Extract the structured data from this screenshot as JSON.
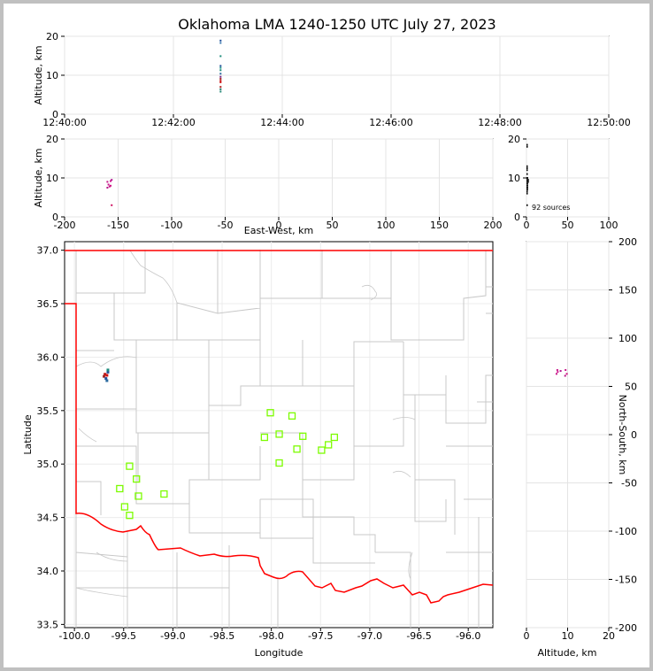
{
  "chart_data": [
    {
      "type": "scatter",
      "panel": "time-height",
      "title": "Oklahoma LMA 1240-1250 UTC July 27, 2023",
      "xlabel": "",
      "ylabel": "Altitude, km",
      "xlim": [
        "12:40:00",
        "12:50:00"
      ],
      "ylim": [
        0,
        20
      ],
      "x_ticks": [
        "12:40:00",
        "12:42:00",
        "12:44:00",
        "12:46:00",
        "12:48:00",
        "12:50:00"
      ],
      "y_ticks": [
        0,
        10,
        20
      ],
      "grid": true,
      "points": [
        {
          "t": "12:42:52",
          "alt": 18.9,
          "color": "#1f4e9a"
        },
        {
          "t": "12:42:52",
          "alt": 18.3,
          "color": "#3a7ab0"
        },
        {
          "t": "12:42:52",
          "alt": 14.9,
          "color": "#1a8a7a"
        },
        {
          "t": "12:42:52",
          "alt": 12.4,
          "color": "#1f4e9a"
        },
        {
          "t": "12:42:52",
          "alt": 11.9,
          "color": "#2a9a8a"
        },
        {
          "t": "12:42:52",
          "alt": 11.3,
          "color": "#1a8a7a"
        },
        {
          "t": "12:42:52",
          "alt": 10.4,
          "color": "#2a6aa0"
        },
        {
          "t": "12:42:52",
          "alt": 9.6,
          "color": "#7a2a8a"
        },
        {
          "t": "12:42:52",
          "alt": 9.1,
          "color": "#a02a2a"
        },
        {
          "t": "12:42:52",
          "alt": 8.6,
          "color": "#c01818"
        },
        {
          "t": "12:42:52",
          "alt": 8.2,
          "color": "#d01010"
        },
        {
          "t": "12:42:52",
          "alt": 7.0,
          "color": "#b01818"
        },
        {
          "t": "12:42:52",
          "alt": 6.4,
          "color": "#1a7a6a"
        },
        {
          "t": "12:42:52",
          "alt": 5.8,
          "color": "#2a8a7a"
        }
      ]
    },
    {
      "type": "scatter",
      "panel": "east-west-height",
      "xlabel": "East-West, km",
      "ylabel": "Altitude, km",
      "xlim": [
        -200,
        200
      ],
      "ylim": [
        0,
        20
      ],
      "x_ticks": [
        -200,
        -150,
        -100,
        -50,
        0,
        50,
        100,
        150,
        200
      ],
      "y_ticks": [
        0,
        10,
        20
      ],
      "grid": true,
      "points": [
        {
          "x": -160,
          "alt": 9.0,
          "color": "#c8188a"
        },
        {
          "x": -157,
          "alt": 9.2,
          "color": "#d0148a"
        },
        {
          "x": -156,
          "alt": 9.5,
          "color": "#b01090"
        },
        {
          "x": -159,
          "alt": 8.3,
          "color": "#c8188a"
        },
        {
          "x": -157,
          "alt": 8.0,
          "color": "#d01080"
        },
        {
          "x": -160,
          "alt": 7.5,
          "color": "#b81488"
        },
        {
          "x": -158,
          "alt": 7.8,
          "color": "#c8188a"
        },
        {
          "x": -156,
          "alt": 3.0,
          "color": "#d01060"
        }
      ]
    },
    {
      "type": "histogram",
      "panel": "altitude-histogram",
      "xlim": [
        0,
        100
      ],
      "ylim": [
        0,
        20
      ],
      "x_ticks": [
        0,
        50,
        100
      ],
      "y_ticks": [
        0,
        10,
        20
      ],
      "grid": true,
      "annotation": "92 sources",
      "bins": [
        {
          "alt": 18.5,
          "count": 1
        },
        {
          "alt": 18.0,
          "count": 1
        },
        {
          "alt": 13.0,
          "count": 1
        },
        {
          "alt": 12.5,
          "count": 1
        },
        {
          "alt": 12.0,
          "count": 1
        },
        {
          "alt": 11.0,
          "count": 1
        },
        {
          "alt": 10.0,
          "count": 2
        },
        {
          "alt": 9.5,
          "count": 3
        },
        {
          "alt": 9.0,
          "count": 3
        },
        {
          "alt": 8.5,
          "count": 2
        },
        {
          "alt": 8.0,
          "count": 2
        },
        {
          "alt": 7.5,
          "count": 2
        },
        {
          "alt": 7.0,
          "count": 2
        },
        {
          "alt": 6.5,
          "count": 1
        },
        {
          "alt": 6.0,
          "count": 1
        },
        {
          "alt": 3.0,
          "count": 1
        }
      ]
    },
    {
      "type": "scatter",
      "panel": "plan-view",
      "xlabel": "Longitude",
      "ylabel": "Latitude",
      "xlim": [
        -100.1,
        -95.75
      ],
      "ylim": [
        33.47,
        37.08
      ],
      "x_ticks": [
        -100.0,
        -99.5,
        -99.0,
        -98.5,
        -98.0,
        -97.5,
        -97.0,
        -96.5,
        -96.0
      ],
      "y_ticks": [
        33.5,
        34.0,
        34.5,
        35.0,
        35.5,
        36.0,
        36.5,
        37.0
      ],
      "grid": true,
      "sources": [
        {
          "lon": -99.69,
          "lat": 35.84,
          "color": "#c01818"
        },
        {
          "lon": -99.67,
          "lat": 35.83,
          "color": "#d01010"
        },
        {
          "lon": -99.7,
          "lat": 35.82,
          "color": "#a02a2a"
        },
        {
          "lon": -99.66,
          "lat": 35.86,
          "color": "#1f4e9a"
        },
        {
          "lon": -99.66,
          "lat": 35.88,
          "color": "#1a8a7a"
        },
        {
          "lon": -99.68,
          "lat": 35.8,
          "color": "#1f4e9a"
        },
        {
          "lon": -99.67,
          "lat": 35.78,
          "color": "#2a6aa0"
        }
      ],
      "stations": [
        {
          "lon": -98.01,
          "lat": 35.48
        },
        {
          "lon": -97.79,
          "lat": 35.45
        },
        {
          "lon": -98.07,
          "lat": 35.25
        },
        {
          "lon": -97.92,
          "lat": 35.28
        },
        {
          "lon": -97.68,
          "lat": 35.26
        },
        {
          "lon": -97.36,
          "lat": 35.25
        },
        {
          "lon": -97.42,
          "lat": 35.18
        },
        {
          "lon": -97.74,
          "lat": 35.14
        },
        {
          "lon": -97.49,
          "lat": 35.13
        },
        {
          "lon": -97.92,
          "lat": 35.01
        },
        {
          "lon": -99.44,
          "lat": 34.98
        },
        {
          "lon": -99.37,
          "lat": 34.86
        },
        {
          "lon": -99.54,
          "lat": 34.77
        },
        {
          "lon": -99.35,
          "lat": 34.7
        },
        {
          "lon": -99.09,
          "lat": 34.72
        },
        {
          "lon": -99.49,
          "lat": 34.6
        },
        {
          "lon": -99.44,
          "lat": 34.52
        }
      ]
    },
    {
      "type": "scatter",
      "panel": "north-south-height",
      "xlabel": "Altitude, km",
      "ylabel": "North-South, km",
      "xlim": [
        0,
        20
      ],
      "ylim": [
        -200,
        200
      ],
      "x_ticks": [
        0,
        10,
        20
      ],
      "y_ticks": [
        -200,
        -150,
        -100,
        -50,
        0,
        50,
        100,
        150,
        200
      ],
      "grid": true,
      "points": [
        {
          "alt": 7.5,
          "y": 67,
          "color": "#c8188a"
        },
        {
          "alt": 7.6,
          "y": 65,
          "color": "#d0148a"
        },
        {
          "alt": 8.3,
          "y": 66,
          "color": "#b01090"
        },
        {
          "alt": 9.5,
          "y": 67,
          "color": "#c8188a"
        },
        {
          "alt": 9.8,
          "y": 63,
          "color": "#d01080"
        },
        {
          "alt": 9.4,
          "y": 61,
          "color": "#b81488"
        },
        {
          "alt": 7.3,
          "y": 63,
          "color": "#c8188a"
        }
      ]
    }
  ]
}
